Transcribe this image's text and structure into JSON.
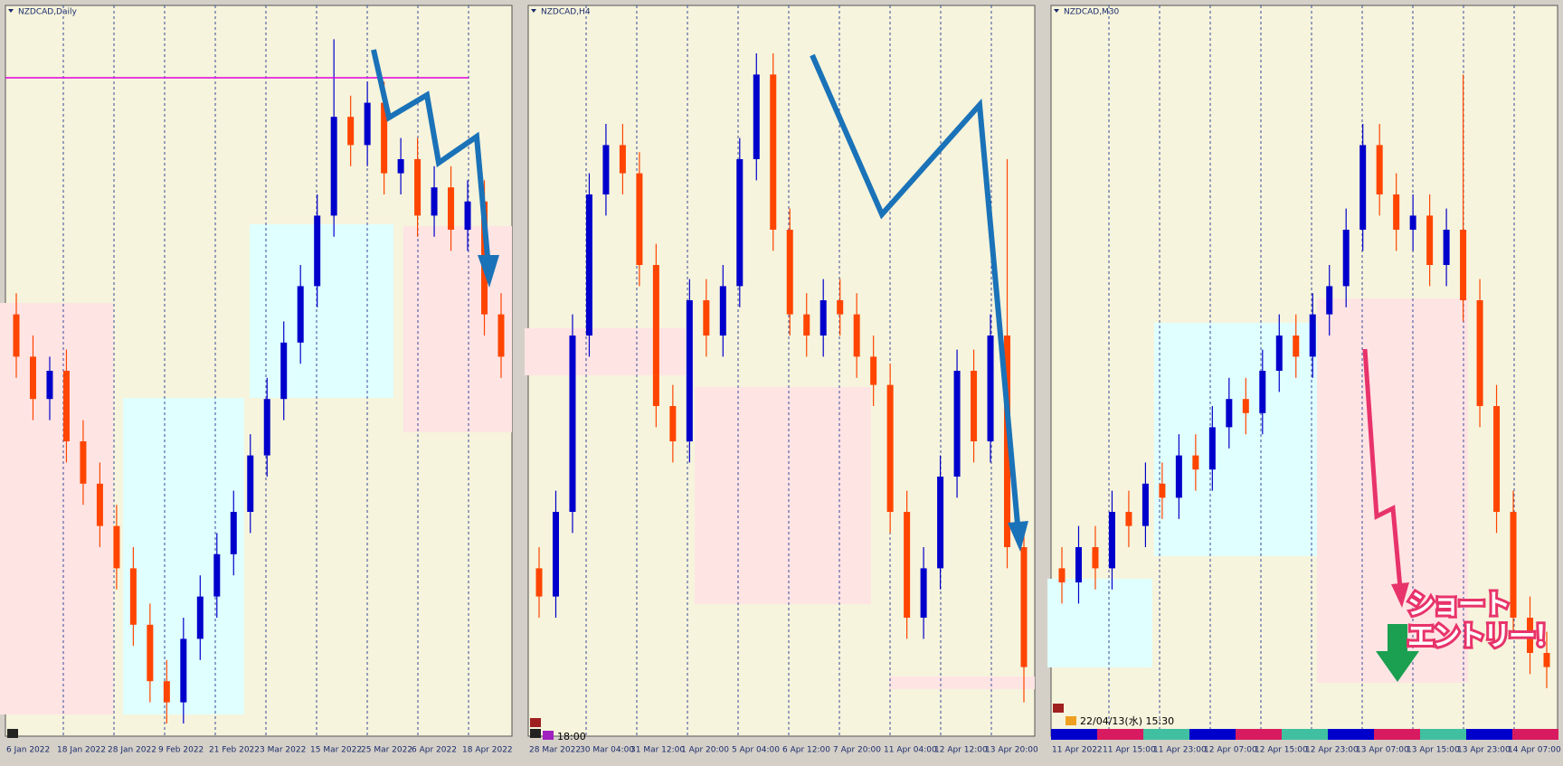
{
  "panels": [
    {
      "title": "NZDCAD,Daily",
      "chart_data": {
        "type": "candlestick",
        "categories": [
          "6 Jan 2022",
          "18 Jan 2022",
          "28 Jan 2022",
          "9 Feb 2022",
          "21 Feb 2022",
          "3 Mar 2022",
          "15 Mar 2022",
          "25 Mar 2022",
          "6 Apr 2022",
          "18 Apr 2022"
        ],
        "open": [
          58,
          52,
          46,
          50,
          40,
          34,
          28,
          22,
          14,
          6,
          3,
          12,
          18,
          24,
          30,
          38,
          46,
          54,
          62,
          72,
          86,
          82,
          88,
          78,
          80,
          72,
          76,
          70,
          74,
          58
        ],
        "high": [
          61,
          55,
          52,
          53,
          43,
          37,
          31,
          25,
          17,
          9,
          15,
          21,
          27,
          33,
          41,
          49,
          57,
          65,
          75,
          97,
          89,
          91,
          91,
          83,
          83,
          79,
          79,
          77,
          77,
          61
        ],
        "low": [
          49,
          43,
          43,
          37,
          31,
          25,
          19,
          11,
          3,
          0,
          0,
          9,
          15,
          21,
          27,
          35,
          43,
          51,
          59,
          69,
          79,
          79,
          75,
          75,
          69,
          69,
          67,
          67,
          55,
          49
        ],
        "close": [
          52,
          46,
          50,
          40,
          34,
          28,
          22,
          14,
          6,
          3,
          12,
          18,
          24,
          30,
          38,
          46,
          54,
          62,
          72,
          86,
          82,
          88,
          78,
          80,
          72,
          76,
          70,
          74,
          58,
          52
        ],
        "ylim": [
          0,
          100
        ],
        "up_color": "#0000cc",
        "down_color": "#ff4500"
      }
    },
    {
      "title": "NZDCAD,H4",
      "chart_data": {
        "type": "candlestick",
        "categories": [
          "28 Mar 2022",
          "30 Mar 04:00",
          "31 Mar 12:00",
          "1 Apr 20:00",
          "5 Apr 04:00",
          "6 Apr 12:00",
          "7 Apr 20:00",
          "11 Apr 04:00",
          "12 Apr 12:00",
          "13 Apr 20:00"
        ],
        "open": [
          22,
          18,
          30,
          55,
          75,
          82,
          78,
          65,
          45,
          40,
          60,
          55,
          62,
          80,
          92,
          70,
          58,
          55,
          60,
          58,
          52,
          48,
          30,
          15,
          22,
          35,
          50,
          40,
          55,
          25
        ],
        "high": [
          25,
          33,
          58,
          78,
          85,
          85,
          81,
          68,
          48,
          63,
          63,
          65,
          83,
          95,
          95,
          73,
          61,
          63,
          63,
          61,
          55,
          51,
          33,
          25,
          38,
          53,
          53,
          58,
          80,
          28
        ],
        "low": [
          15,
          15,
          27,
          52,
          72,
          75,
          62,
          42,
          37,
          37,
          52,
          52,
          59,
          77,
          67,
          55,
          52,
          52,
          55,
          49,
          45,
          27,
          12,
          12,
          19,
          32,
          37,
          37,
          22,
          3
        ],
        "close": [
          18,
          30,
          55,
          75,
          82,
          78,
          65,
          45,
          40,
          60,
          55,
          62,
          80,
          92,
          70,
          58,
          55,
          60,
          58,
          52,
          48,
          30,
          15,
          22,
          35,
          50,
          40,
          55,
          25,
          8
        ],
        "ylim": [
          0,
          100
        ],
        "up_color": "#0000cc",
        "down_color": "#ff4500"
      }
    },
    {
      "title": "NZDCAD,M30",
      "chart_data": {
        "type": "candlestick",
        "categories": [
          "11 Apr 2022",
          "11 Apr 15:00",
          "11 Apr 23:00",
          "12 Apr 07:00",
          "12 Apr 15:00",
          "12 Apr 23:00",
          "13 Apr 07:00",
          "13 Apr 15:00",
          "13 Apr 23:00",
          "14 Apr 07:00"
        ],
        "open": [
          22,
          20,
          25,
          22,
          30,
          28,
          34,
          32,
          38,
          36,
          42,
          46,
          44,
          50,
          55,
          52,
          58,
          62,
          70,
          82,
          75,
          70,
          72,
          65,
          70,
          60,
          45,
          30,
          15,
          10
        ],
        "high": [
          25,
          28,
          28,
          33,
          33,
          37,
          37,
          41,
          41,
          45,
          49,
          49,
          53,
          58,
          58,
          61,
          65,
          73,
          85,
          85,
          78,
          75,
          75,
          73,
          92,
          63,
          48,
          33,
          18,
          13
        ],
        "low": [
          17,
          17,
          19,
          19,
          25,
          25,
          29,
          29,
          33,
          33,
          39,
          41,
          41,
          47,
          49,
          49,
          55,
          59,
          67,
          72,
          67,
          67,
          62,
          62,
          57,
          42,
          27,
          12,
          7,
          5
        ],
        "close": [
          20,
          25,
          22,
          30,
          28,
          34,
          32,
          38,
          36,
          42,
          46,
          44,
          50,
          55,
          52,
          58,
          62,
          70,
          82,
          75,
          70,
          72,
          65,
          70,
          60,
          45,
          30,
          15,
          10,
          8
        ],
        "ylim": [
          0,
          100
        ],
        "up_color": "#0000cc",
        "down_color": "#ff4500"
      }
    }
  ],
  "status_time": "18:00",
  "server_time": "22/04/13(水) 15:30",
  "annotation": {
    "line1": "ショート",
    "line2": "エントリー！"
  }
}
